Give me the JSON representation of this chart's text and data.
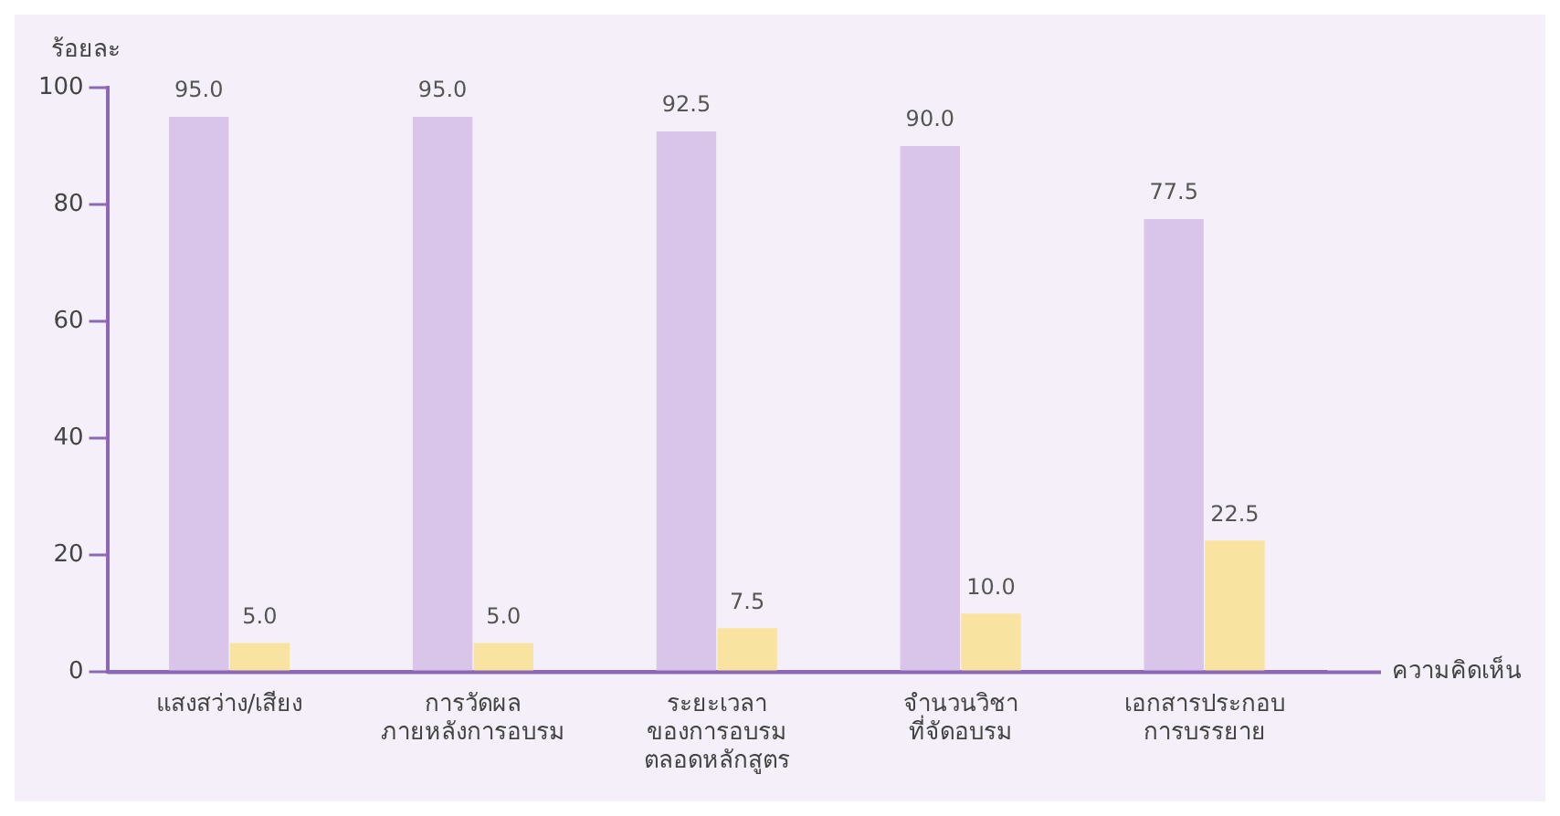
{
  "chart_data": {
    "type": "bar",
    "ylabel": "ร้อยละ",
    "xlabel": "ความคิดเห็น",
    "categories": [
      "แสงสว่าง/เสียง",
      "การวัดผล\nภายหลังการอบรม",
      "ระยะเวลา\nของการอบรม\nตลอดหลักสูตร",
      "จำนวนวิชา\nที่จัดอบรม",
      "เอกสารประกอบ\nการบรรยาย"
    ],
    "series": [
      {
        "color": "#d9c4ea",
        "values": [
          95,
          95,
          92.5,
          90,
          77.5
        ],
        "value_labels": [
          "95.0",
          "95.0",
          "92.5",
          "90.0",
          "77.5"
        ]
      },
      {
        "color": "#f9e3a0",
        "values": [
          5,
          5,
          7.5,
          10,
          22.5
        ],
        "value_labels": [
          "5.0",
          "5.0",
          "7.5",
          "10.0",
          "22.5"
        ]
      }
    ],
    "ylim": [
      0,
      100
    ],
    "yticks": [
      0,
      20,
      40,
      60,
      80,
      100
    ],
    "grid": false,
    "legend": false
  }
}
